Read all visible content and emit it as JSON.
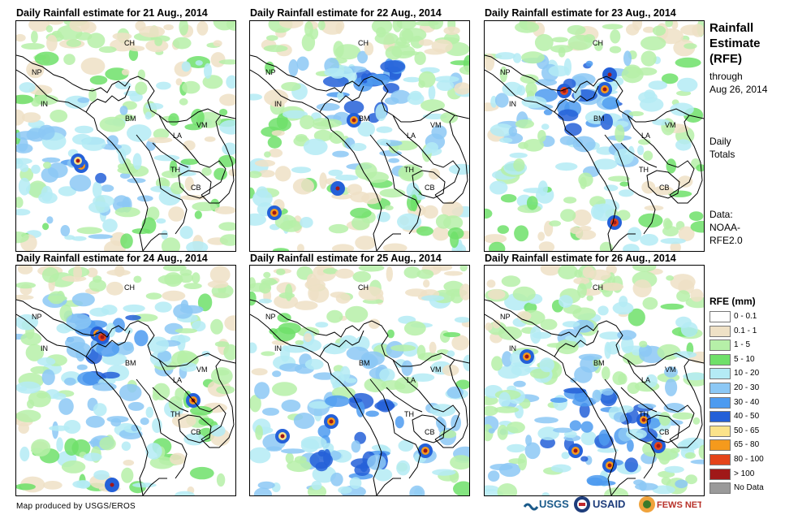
{
  "panels": [
    {
      "title": "Daily Rainfall estimate for 21 Aug., 2014"
    },
    {
      "title": "Daily Rainfall estimate for 22 Aug., 2014"
    },
    {
      "title": "Daily Rainfall estimate for 23 Aug., 2014"
    },
    {
      "title": "Daily Rainfall estimate for 24 Aug., 2014"
    },
    {
      "title": "Daily Rainfall estimate for 25 Aug., 2014"
    },
    {
      "title": "Daily Rainfall estimate for 26 Aug., 2014"
    }
  ],
  "country_labels": [
    "CH",
    "NP",
    "IN",
    "BM",
    "LA",
    "VM",
    "TH",
    "CB"
  ],
  "side": {
    "title_line1": "Rainfall",
    "title_line2": "Estimate",
    "title_line3": "(RFE)",
    "through": "through",
    "date": "Aug 26, 2014",
    "daily": "Daily",
    "totals": "Totals",
    "data_label": "Data:",
    "data_source1": "NOAA-",
    "data_source2": "RFE2.0"
  },
  "legend": {
    "title": "RFE (mm)",
    "items": [
      {
        "label": "0 - 0.1",
        "color": "#ffffff"
      },
      {
        "label": "0.1 - 1",
        "color": "#efe1c6"
      },
      {
        "label": "1 - 5",
        "color": "#b6f0a8"
      },
      {
        "label": "5 - 10",
        "color": "#6fe06a"
      },
      {
        "label": "10 - 20",
        "color": "#b4ebf5"
      },
      {
        "label": "20 - 30",
        "color": "#8cc8f5"
      },
      {
        "label": "30 - 40",
        "color": "#4d9bf0"
      },
      {
        "label": "40 - 50",
        "color": "#2460d8"
      },
      {
        "label": "50 - 65",
        "color": "#fbe38a"
      },
      {
        "label": "65 - 80",
        "color": "#f59a1c"
      },
      {
        "label": "80 - 100",
        "color": "#e4441a"
      },
      {
        "label": "> 100",
        "color": "#a01818"
      },
      {
        "label": "No Data",
        "color": "#9a9a9a"
      }
    ]
  },
  "credit": "Map produced by USGS/EROS",
  "logos": {
    "usgs": "USGS",
    "usaid": "USAID",
    "fewsnet": "FEWS NET"
  },
  "colors": {
    "background": "#ffffff",
    "border": "#000000"
  }
}
